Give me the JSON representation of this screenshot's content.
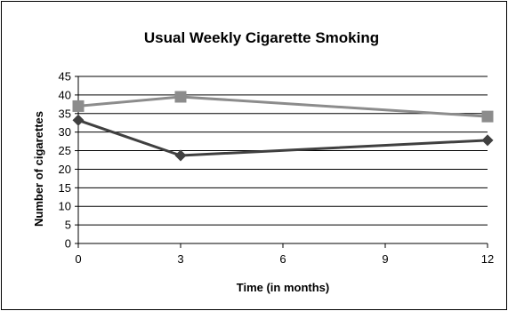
{
  "chart_data": {
    "type": "line",
    "title": "Usual  Weekly Cigarette Smoking",
    "xlabel": "Time (in months)",
    "ylabel": "Number of cigarettes",
    "x": [
      0,
      3,
      12
    ],
    "xticks": [
      "0",
      "3",
      "6",
      "9",
      "12"
    ],
    "xlim": [
      0,
      12
    ],
    "ylim": [
      0,
      45
    ],
    "yticks": [
      "0",
      "5",
      "10",
      "15",
      "20",
      "25",
      "30",
      "35",
      "40",
      "45"
    ],
    "grid": true,
    "legend": "none",
    "series": [
      {
        "color": "#8c8c8c",
        "marker": "square",
        "values": [
          37,
          39.5,
          34.2
        ]
      },
      {
        "color": "#404040",
        "marker": "diamond",
        "values": [
          33.2,
          23.7,
          27.8
        ]
      }
    ]
  }
}
